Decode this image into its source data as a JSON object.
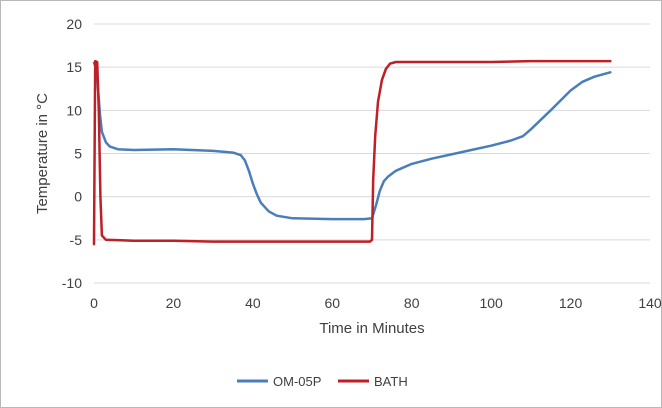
{
  "chart_data": {
    "type": "line",
    "title": "",
    "xlabel": "Time in Minutes",
    "ylabel": "Temperature in °C",
    "xlim": [
      0,
      140
    ],
    "ylim": [
      -10,
      20
    ],
    "x_ticks": [
      0,
      20,
      40,
      60,
      80,
      100,
      120,
      140
    ],
    "y_ticks": [
      -10,
      -5,
      0,
      5,
      10,
      15,
      20
    ],
    "x_tick_labels": [
      "0",
      "20",
      "40",
      "60",
      "80",
      "100",
      "120",
      "140"
    ],
    "y_tick_labels": [
      "-10",
      "-5",
      "0",
      "5",
      "10",
      "15",
      "20"
    ],
    "grid": "horizontal",
    "legend_position": "bottom",
    "series": [
      {
        "name": "OM-05P",
        "color": "#4a7ebb",
        "points": [
          [
            0,
            15.5
          ],
          [
            0.5,
            15.0
          ],
          [
            1,
            12.5
          ],
          [
            1.5,
            9.5
          ],
          [
            2,
            7.5
          ],
          [
            3,
            6.3
          ],
          [
            4,
            5.8
          ],
          [
            6,
            5.5
          ],
          [
            10,
            5.4
          ],
          [
            20,
            5.5
          ],
          [
            30,
            5.3
          ],
          [
            35,
            5.1
          ],
          [
            37,
            4.8
          ],
          [
            38,
            4.2
          ],
          [
            39,
            3.0
          ],
          [
            40,
            1.5
          ],
          [
            41,
            0.3
          ],
          [
            42,
            -0.7
          ],
          [
            44,
            -1.7
          ],
          [
            46,
            -2.2
          ],
          [
            50,
            -2.5
          ],
          [
            60,
            -2.6
          ],
          [
            68,
            -2.6
          ],
          [
            70,
            -2.5
          ],
          [
            71,
            -1.0
          ],
          [
            72,
            0.7
          ],
          [
            73,
            1.8
          ],
          [
            74,
            2.3
          ],
          [
            76,
            3.0
          ],
          [
            80,
            3.8
          ],
          [
            85,
            4.4
          ],
          [
            90,
            4.9
          ],
          [
            95,
            5.4
          ],
          [
            100,
            5.9
          ],
          [
            105,
            6.5
          ],
          [
            108,
            7.0
          ],
          [
            110,
            7.8
          ],
          [
            115,
            10.0
          ],
          [
            120,
            12.3
          ],
          [
            123,
            13.3
          ],
          [
            126,
            13.9
          ],
          [
            130,
            14.4
          ]
        ]
      },
      {
        "name": "BATH",
        "color": "#be2026",
        "points": [
          [
            0,
            -5.5
          ],
          [
            0.3,
            15.7
          ],
          [
            0.8,
            15.6
          ],
          [
            1.2,
            10.0
          ],
          [
            1.6,
            0.0
          ],
          [
            2,
            -4.5
          ],
          [
            3,
            -5.0
          ],
          [
            10,
            -5.1
          ],
          [
            20,
            -5.1
          ],
          [
            30,
            -5.2
          ],
          [
            40,
            -5.2
          ],
          [
            50,
            -5.2
          ],
          [
            60,
            -5.2
          ],
          [
            69.5,
            -5.2
          ],
          [
            70,
            -5.0
          ],
          [
            70.3,
            2.0
          ],
          [
            70.8,
            7.0
          ],
          [
            71.5,
            11.0
          ],
          [
            72.5,
            13.5
          ],
          [
            73.5,
            14.8
          ],
          [
            74.5,
            15.4
          ],
          [
            76,
            15.6
          ],
          [
            80,
            15.6
          ],
          [
            90,
            15.6
          ],
          [
            100,
            15.6
          ],
          [
            110,
            15.7
          ],
          [
            120,
            15.7
          ],
          [
            130,
            15.7
          ]
        ]
      }
    ]
  }
}
